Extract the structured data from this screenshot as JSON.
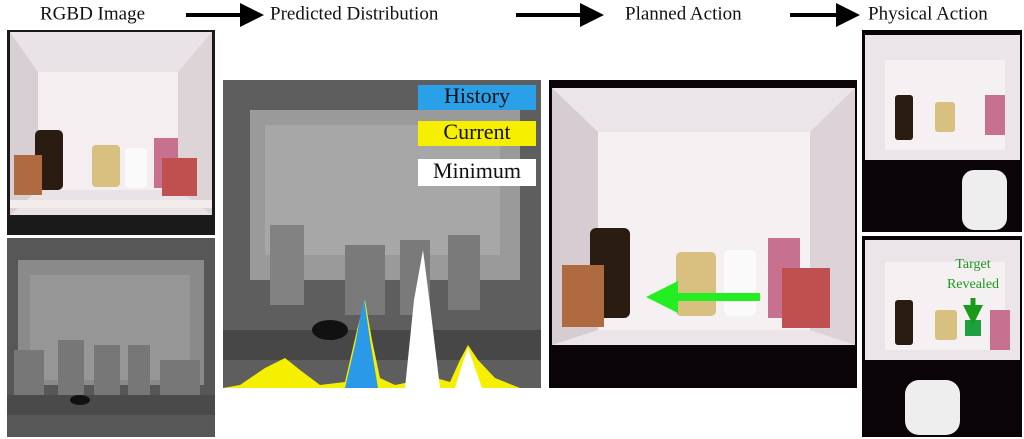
{
  "header": {
    "steps": [
      "RGBD Image",
      "Predicted Distribution",
      "Planned Action",
      "Physical Action"
    ]
  },
  "legend": {
    "items": [
      "History",
      "Current",
      "Minimum"
    ]
  },
  "annotation": {
    "lines": [
      "Target",
      "Revealed"
    ]
  }
}
